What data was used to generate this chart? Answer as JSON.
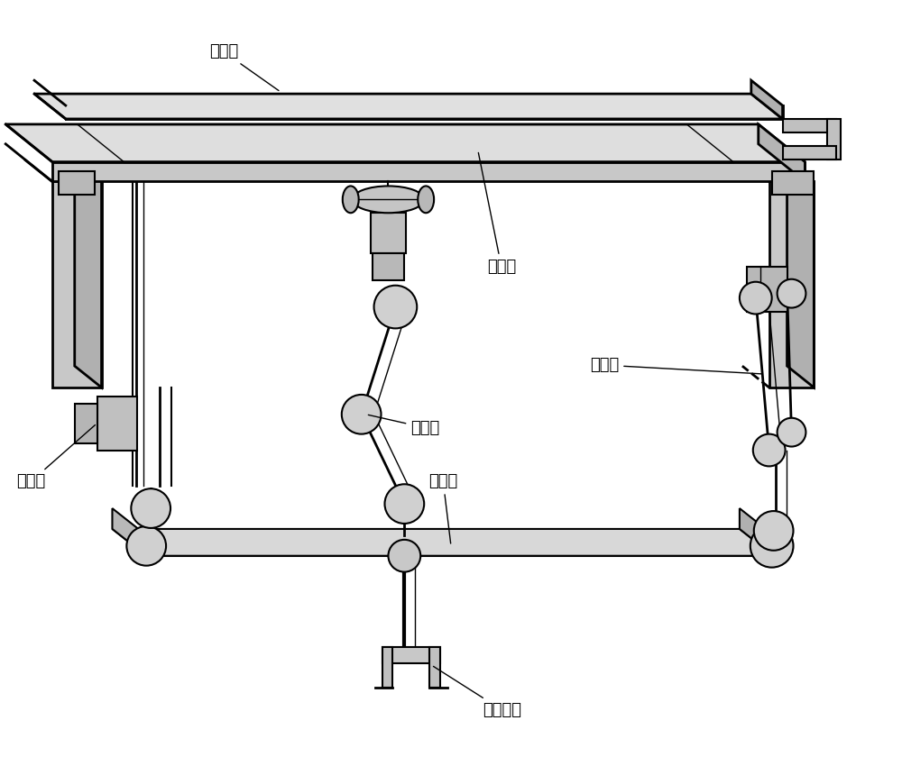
{
  "bg_color": "#ffffff",
  "line_color": "#000000",
  "labels": {
    "ding_pingtai": "定平台",
    "di_pingtai": "底平台",
    "zhi_lian_yi": "支链一",
    "zhi_lian_er": "支链二",
    "zhi_lian_san": "支链三",
    "dong_pingtai": "动平台",
    "ji_gou_mo_duan": "机构末端"
  },
  "fontsize": 13
}
